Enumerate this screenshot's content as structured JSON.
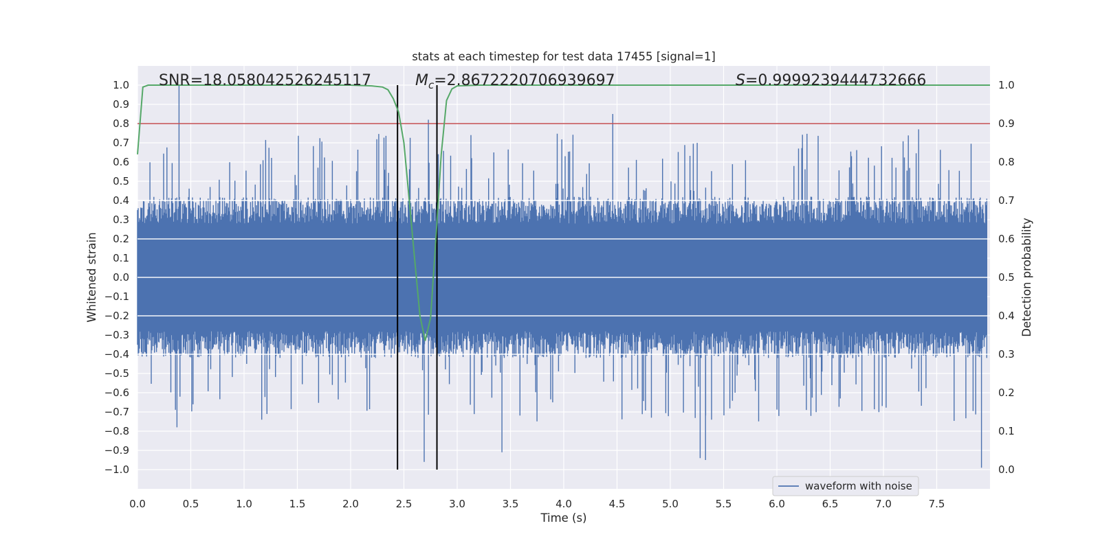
{
  "chart_data": {
    "type": "line",
    "title": "stats at each timestep for test data 17455 [signal=1]",
    "xlabel": "Time (s)",
    "ylabel": "Whitened strain",
    "y2label": "Detection probability",
    "xlim": [
      0.0,
      8.0
    ],
    "ylim": [
      -1.1,
      1.1
    ],
    "y2lim": [
      -0.05,
      1.05
    ],
    "x_ticks": [
      "0.0",
      "0.5",
      "1.0",
      "1.5",
      "2.0",
      "2.5",
      "3.0",
      "3.5",
      "4.0",
      "4.5",
      "5.0",
      "5.5",
      "6.0",
      "6.5",
      "7.0",
      "7.5"
    ],
    "y_ticks": [
      "1.0",
      "0.9",
      "0.8",
      "0.7",
      "0.6",
      "0.5",
      "0.4",
      "0.3",
      "0.2",
      "0.1",
      "0.0",
      "−0.1",
      "−0.2",
      "−0.3",
      "−0.4",
      "−0.5",
      "−0.6",
      "−0.7",
      "−0.8",
      "−0.9",
      "−1.0"
    ],
    "y2_ticks": [
      "1.0",
      "0.9",
      "0.8",
      "0.7",
      "0.6",
      "0.5",
      "0.4",
      "0.3",
      "0.2",
      "0.1",
      "0.0"
    ],
    "grid": true,
    "legend_position": "bottom-right",
    "annotations": {
      "snr_label": "SNR",
      "snr_value": "18.058042526245117",
      "mc_symbol": "M",
      "mc_subscript": "c",
      "mc_value": "2.8672220706939697",
      "s_symbol": "S",
      "s_value": "0.9999239444732666"
    },
    "threshold": {
      "value": 0.9,
      "axis": "y2",
      "color": "#c44e52"
    },
    "vertical_markers": [
      2.44,
      2.81
    ],
    "series": [
      {
        "name": "waveform with noise",
        "axis": "y",
        "color": "#4c72b0",
        "envelope": "noise, approx. ±0.35 core with spikes to about +1.0 / −1.0",
        "notable_peaks": [
          [
            0.39,
            1.0
          ],
          [
            2.73,
            0.82
          ],
          [
            4.46,
            0.85
          ],
          [
            7.33,
            0.77
          ]
        ],
        "notable_troughs": [
          [
            0.37,
            -0.78
          ],
          [
            2.69,
            -0.96
          ],
          [
            3.42,
            -0.91
          ],
          [
            5.28,
            -0.94
          ],
          [
            5.33,
            -0.95
          ],
          [
            7.92,
            -0.99
          ]
        ]
      },
      {
        "axis": "y2",
        "color": "#55a868",
        "x": [
          0.0,
          0.05,
          0.1,
          0.2,
          0.5,
          1.0,
          1.5,
          2.0,
          2.2,
          2.3,
          2.35,
          2.4,
          2.45,
          2.5,
          2.55,
          2.6,
          2.65,
          2.7,
          2.75,
          2.8,
          2.85,
          2.9,
          2.95,
          3.0,
          3.2,
          4.0,
          5.0,
          6.0,
          7.0,
          8.0
        ],
        "y": [
          0.82,
          0.995,
          1.0,
          1.0,
          1.0,
          1.0,
          1.0,
          1.0,
          0.998,
          0.995,
          0.988,
          0.965,
          0.93,
          0.85,
          0.7,
          0.55,
          0.4,
          0.335,
          0.395,
          0.6,
          0.82,
          0.96,
          0.99,
          0.998,
          1.0,
          1.0,
          1.0,
          1.0,
          1.0,
          1.0
        ]
      }
    ]
  }
}
